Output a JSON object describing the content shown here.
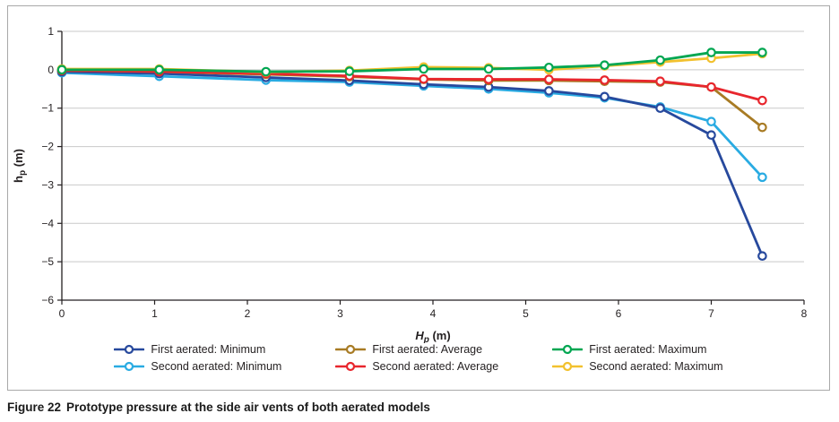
{
  "figure": {
    "caption_label": "Figure 22",
    "caption_text": "Prototype pressure at the side air vents of both aerated models"
  },
  "chart_data": {
    "type": "line",
    "title": "",
    "xlabel": {
      "main": "H",
      "sub": "p",
      "unit": " (m)",
      "italic": true
    },
    "ylabel": {
      "main": "h",
      "sub": "p",
      "unit": " (m)",
      "italic": false
    },
    "xlim": [
      0,
      8
    ],
    "ylim": [
      -6,
      1
    ],
    "xticks": [
      0,
      1,
      2,
      3,
      4,
      5,
      6,
      7,
      8
    ],
    "yticks": [
      1,
      0,
      -1,
      -2,
      -3,
      -4,
      -5,
      -6
    ],
    "grid": "horizontal-only",
    "legend_position": "bottom",
    "marker": "open-circle",
    "x": [
      0,
      1.05,
      2.2,
      3.1,
      3.9,
      4.6,
      5.25,
      5.85,
      6.45,
      7.0,
      7.55
    ],
    "series": [
      {
        "name": "First aerated: Minimum",
        "color": "#27499d",
        "values": [
          -0.05,
          -0.1,
          -0.2,
          -0.28,
          -0.38,
          -0.45,
          -0.55,
          -0.7,
          -1.0,
          -1.7,
          -4.85
        ]
      },
      {
        "name": "Second aerated: Minimum",
        "color": "#29abe2",
        "values": [
          -0.08,
          -0.17,
          -0.27,
          -0.32,
          -0.42,
          -0.5,
          -0.6,
          -0.73,
          -0.97,
          -1.35,
          -2.8
        ]
      },
      {
        "name": "First aerated: Average",
        "color": "#a87b24",
        "values": [
          -0.02,
          -0.05,
          -0.12,
          -0.18,
          -0.25,
          -0.28,
          -0.28,
          -0.3,
          -0.32,
          -0.45,
          -1.5
        ]
      },
      {
        "name": "Second aerated: Average",
        "color": "#e8262d",
        "values": [
          -0.02,
          -0.05,
          -0.1,
          -0.16,
          -0.24,
          -0.25,
          -0.25,
          -0.27,
          -0.3,
          -0.45,
          -0.8
        ]
      },
      {
        "name": "First aerated: Maximum",
        "color": "#00a651",
        "values": [
          0.0,
          0.0,
          -0.05,
          -0.04,
          0.02,
          0.02,
          0.06,
          0.12,
          0.25,
          0.45,
          0.45
        ]
      },
      {
        "name": "Second aerated: Maximum",
        "color": "#f2c12e",
        "values": [
          0.02,
          0.02,
          -0.06,
          -0.02,
          0.07,
          0.05,
          0.0,
          0.1,
          0.2,
          0.3,
          0.42
        ]
      }
    ]
  }
}
